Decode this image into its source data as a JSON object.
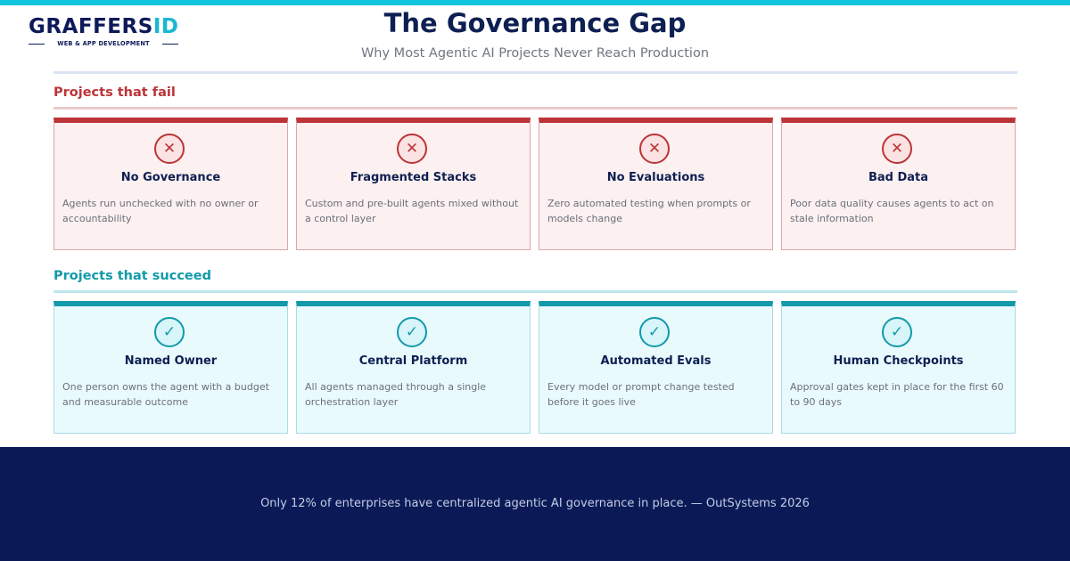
{
  "logo": {
    "word_main": "GRAFFERS",
    "word_accent": "ID",
    "tagline": "WEB & APP DEVELOPMENT"
  },
  "header": {
    "title": "The Governance Gap",
    "subtitle": "Why Most Agentic AI Projects Never Reach Production"
  },
  "colors": {
    "top_bar": "#12c4dc",
    "fail_accent": "#bc3437",
    "success_accent": "#129aaa",
    "navy": "#0e1f52",
    "footer_bg": "#0b1a57"
  },
  "fail_section": {
    "heading": "Projects that fail",
    "icon": "x-circle-icon",
    "icon_glyph": "✕",
    "cards": [
      {
        "title": "No Governance",
        "description": "Agents run unchecked with no owner or accountability"
      },
      {
        "title": "Fragmented Stacks",
        "description": "Custom and pre-built agents mixed without a control layer"
      },
      {
        "title": "No Evaluations",
        "description": "Zero automated testing when prompts or models change"
      },
      {
        "title": "Bad Data",
        "description": "Poor data quality causes agents to act on stale information"
      }
    ]
  },
  "success_section": {
    "heading": "Projects that succeed",
    "icon": "check-circle-icon",
    "icon_glyph": "✓",
    "cards": [
      {
        "title": "Named Owner",
        "description": "One person owns the agent with a budget and measurable outcome"
      },
      {
        "title": "Central Platform",
        "description": "All agents managed through a single orchestration layer"
      },
      {
        "title": "Automated Evals",
        "description": "Every model or prompt change tested before it goes live"
      },
      {
        "title": "Human Checkpoints",
        "description": "Approval gates kept in place for the first 60 to 90 days"
      }
    ]
  },
  "footer": {
    "text": "Only 12% of enterprises have centralized agentic AI governance in place.  —  OutSystems 2026"
  }
}
